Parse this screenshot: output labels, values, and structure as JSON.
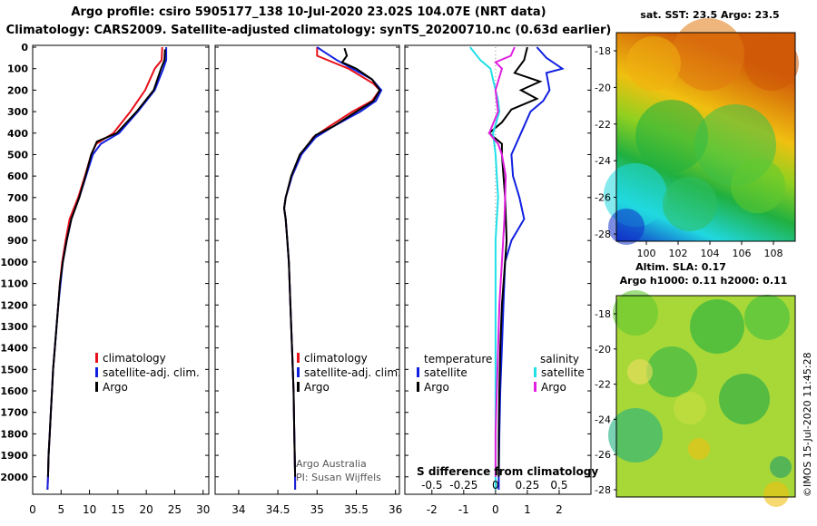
{
  "title": {
    "line1": "Argo profile: csiro 5905177_138 10-Jul-2020 23.02S 104.07E (NRT data)",
    "line2": "Climatology: CARS2009. Satellite-adjusted climatology: synTS_20200710.nc (0.63d earlier)"
  },
  "colors": {
    "climatology": "#e8101a",
    "satellite": "#1020e0",
    "argo": "#000000",
    "salinity_sat": "#20e0e8",
    "salinity_argo": "#e020e0"
  },
  "chart_data": [
    {
      "id": "temperature",
      "type": "line",
      "xlabel": "",
      "ylabel": "",
      "xlim": [
        0,
        31
      ],
      "ylim": [
        2070,
        0
      ],
      "xticks": [
        0,
        5,
        10,
        15,
        20,
        25,
        30
      ],
      "yticks": [
        0,
        100,
        200,
        300,
        400,
        500,
        600,
        700,
        800,
        900,
        1000,
        1100,
        1200,
        1300,
        1400,
        1500,
        1600,
        1700,
        1800,
        1900,
        2000
      ],
      "legend": [
        "climatology",
        "satellite-adj. clim.",
        "Argo"
      ],
      "series": [
        {
          "name": "climatology",
          "color": "#e8101a",
          "points": [
            [
              22.8,
              0
            ],
            [
              22.7,
              60
            ],
            [
              21.5,
              100
            ],
            [
              19.8,
              200
            ],
            [
              17.2,
              300
            ],
            [
              14.2,
              400
            ],
            [
              11.2,
              450
            ],
            [
              10.3,
              500
            ],
            [
              9.2,
              600
            ],
            [
              8.0,
              700
            ],
            [
              6.5,
              800
            ],
            [
              5.8,
              900
            ],
            [
              5.2,
              1000
            ],
            [
              4.8,
              1100
            ],
            [
              4.5,
              1200
            ],
            [
              4.2,
              1300
            ],
            [
              3.9,
              1400
            ],
            [
              3.6,
              1500
            ],
            [
              3.4,
              1600
            ],
            [
              3.2,
              1700
            ],
            [
              3.0,
              1800
            ],
            [
              2.8,
              1900
            ],
            [
              2.7,
              2000
            ],
            [
              2.6,
              2060
            ]
          ]
        },
        {
          "name": "satellite-adj. clim.",
          "color": "#1020e0",
          "points": [
            [
              23.5,
              0
            ],
            [
              23.5,
              60
            ],
            [
              23.0,
              100
            ],
            [
              21.5,
              200
            ],
            [
              18.5,
              300
            ],
            [
              15.2,
              400
            ],
            [
              12.0,
              450
            ],
            [
              10.6,
              500
            ],
            [
              9.4,
              600
            ],
            [
              8.2,
              700
            ],
            [
              6.8,
              800
            ],
            [
              6.0,
              900
            ],
            [
              5.3,
              1000
            ],
            [
              4.9,
              1100
            ],
            [
              4.5,
              1200
            ],
            [
              4.2,
              1300
            ],
            [
              3.9,
              1400
            ],
            [
              3.6,
              1500
            ],
            [
              3.4,
              1600
            ],
            [
              3.2,
              1700
            ],
            [
              3.0,
              1800
            ],
            [
              2.8,
              1900
            ],
            [
              2.7,
              2000
            ],
            [
              2.6,
              2060
            ]
          ]
        },
        {
          "name": "Argo",
          "color": "#000000",
          "points": [
            [
              23.3,
              10
            ],
            [
              23.2,
              60
            ],
            [
              22.6,
              100
            ],
            [
              21.3,
              200
            ],
            [
              18.3,
              300
            ],
            [
              14.8,
              400
            ],
            [
              11.3,
              440
            ],
            [
              10.3,
              500
            ],
            [
              9.3,
              600
            ],
            [
              8.2,
              700
            ],
            [
              6.8,
              800
            ],
            [
              6.0,
              900
            ],
            [
              5.3,
              1000
            ],
            [
              4.8,
              1100
            ],
            [
              4.5,
              1200
            ],
            [
              4.2,
              1300
            ],
            [
              3.9,
              1400
            ],
            [
              3.6,
              1500
            ],
            [
              3.4,
              1600
            ],
            [
              3.2,
              1700
            ],
            [
              3.0,
              1800
            ],
            [
              2.8,
              1900
            ],
            [
              2.7,
              2000
            ]
          ]
        }
      ]
    },
    {
      "id": "salinity",
      "type": "line",
      "xlabel": "",
      "ylabel": "",
      "xlim": [
        33.7,
        36.05
      ],
      "ylim": [
        2070,
        0
      ],
      "xticks": [
        "34",
        "34.5",
        "35",
        "35.5",
        "36"
      ],
      "legend": [
        "climatology",
        "satellite-adj. clim.",
        "Argo"
      ],
      "annotation": [
        "Argo Australia",
        "PI: Susan Wijffels"
      ],
      "series": [
        {
          "name": "climatology",
          "color": "#e8101a",
          "points": [
            [
              35.0,
              0
            ],
            [
              35.0,
              40
            ],
            [
              35.4,
              100
            ],
            [
              35.72,
              170
            ],
            [
              35.8,
              200
            ],
            [
              35.7,
              250
            ],
            [
              35.45,
              300
            ],
            [
              35.15,
              370
            ],
            [
              34.95,
              420
            ],
            [
              34.8,
              500
            ],
            [
              34.68,
              600
            ],
            [
              34.6,
              700
            ],
            [
              34.58,
              750
            ],
            [
              34.6,
              800
            ],
            [
              34.62,
              900
            ],
            [
              34.64,
              1000
            ],
            [
              34.66,
              1200
            ],
            [
              34.68,
              1400
            ],
            [
              34.7,
              1600
            ],
            [
              34.71,
              1800
            ],
            [
              34.72,
              2000
            ],
            [
              34.72,
              2060
            ]
          ]
        },
        {
          "name": "satellite-adj. clim.",
          "color": "#1020e0",
          "points": [
            [
              35.0,
              0
            ],
            [
              35.08,
              20
            ],
            [
              35.25,
              60
            ],
            [
              35.45,
              100
            ],
            [
              35.7,
              150
            ],
            [
              35.82,
              200
            ],
            [
              35.75,
              250
            ],
            [
              35.55,
              300
            ],
            [
              35.2,
              370
            ],
            [
              34.98,
              420
            ],
            [
              34.8,
              500
            ],
            [
              34.68,
              600
            ],
            [
              34.6,
              700
            ],
            [
              34.58,
              750
            ],
            [
              34.6,
              800
            ],
            [
              34.62,
              900
            ],
            [
              34.64,
              1000
            ],
            [
              34.66,
              1200
            ],
            [
              34.68,
              1400
            ],
            [
              34.7,
              1600
            ],
            [
              34.71,
              1800
            ],
            [
              34.72,
              2000
            ],
            [
              34.72,
              2060
            ]
          ]
        },
        {
          "name": "Argo",
          "color": "#000000",
          "points": [
            [
              35.35,
              5
            ],
            [
              35.38,
              40
            ],
            [
              35.32,
              70
            ],
            [
              35.5,
              100
            ],
            [
              35.7,
              150
            ],
            [
              35.8,
              200
            ],
            [
              35.72,
              250
            ],
            [
              35.5,
              300
            ],
            [
              35.2,
              370
            ],
            [
              34.98,
              410
            ],
            [
              34.78,
              500
            ],
            [
              34.67,
              600
            ],
            [
              34.6,
              700
            ],
            [
              34.58,
              750
            ],
            [
              34.6,
              800
            ],
            [
              34.62,
              900
            ],
            [
              34.64,
              1000
            ],
            [
              34.66,
              1200
            ],
            [
              34.68,
              1400
            ],
            [
              34.7,
              1600
            ],
            [
              34.71,
              1800
            ],
            [
              34.72,
              2000
            ]
          ]
        }
      ]
    },
    {
      "id": "difference",
      "type": "line",
      "xlabel": "S difference from climatology",
      "ylabel": "",
      "xlim_T": [
        -2.85,
        3.0
      ],
      "xticks_T": [
        "-2",
        "-1",
        "0",
        "1",
        "2"
      ],
      "xticks_T_values": [
        -2,
        -1,
        0,
        1,
        2
      ],
      "xticks_S": [
        "-0.5",
        "-0.25",
        "0",
        "0.25",
        "0.5"
      ],
      "xticks_S_values": [
        -0.5,
        -0.25,
        0,
        0.25,
        0.5
      ],
      "legend": {
        "temperature_header": "temperature",
        "salinity_header": "salinity",
        "temperature_items": [
          "satellite",
          "Argo"
        ],
        "salinity_items": [
          "satellite",
          "Argo"
        ]
      },
      "series": [
        {
          "name": "temperature satellite",
          "color": "#1020e0",
          "points": [
            [
              1.3,
              0
            ],
            [
              1.6,
              50
            ],
            [
              2.1,
              100
            ],
            [
              1.6,
              120
            ],
            [
              1.7,
              200
            ],
            [
              1.5,
              250
            ],
            [
              1.1,
              300
            ],
            [
              0.8,
              400
            ],
            [
              0.5,
              500
            ],
            [
              0.55,
              600
            ],
            [
              0.75,
              700
            ],
            [
              0.9,
              800
            ],
            [
              0.7,
              850
            ],
            [
              0.5,
              900
            ],
            [
              0.3,
              1000
            ],
            [
              0.25,
              1200
            ],
            [
              0.2,
              1400
            ],
            [
              0.15,
              1600
            ],
            [
              0.12,
              1800
            ],
            [
              0.1,
              2000
            ],
            [
              0.1,
              2060
            ]
          ]
        },
        {
          "name": "temperature Argo",
          "color": "#000000",
          "points": [
            [
              1.0,
              0
            ],
            [
              0.9,
              60
            ],
            [
              0.6,
              120
            ],
            [
              1.4,
              160
            ],
            [
              0.8,
              200
            ],
            [
              1.3,
              240
            ],
            [
              0.5,
              290
            ],
            [
              0.2,
              350
            ],
            [
              -0.2,
              400
            ],
            [
              0.2,
              450
            ],
            [
              0.2,
              500
            ],
            [
              0.3,
              700
            ],
            [
              0.35,
              900
            ],
            [
              0.3,
              1000
            ],
            [
              0.2,
              1200
            ],
            [
              0.15,
              1400
            ],
            [
              0.12,
              1600
            ],
            [
              0.1,
              1800
            ],
            [
              0.1,
              2000
            ]
          ]
        },
        {
          "name": "salinity satellite",
          "color": "#20e0e8",
          "points": [
            [
              -0.2,
              0
            ],
            [
              -0.12,
              60
            ],
            [
              -0.04,
              100
            ],
            [
              0.0,
              200
            ],
            [
              0.02,
              250
            ],
            [
              0.03,
              300
            ],
            [
              -0.02,
              400
            ],
            [
              0.0,
              500
            ],
            [
              0.02,
              700
            ],
            [
              0.0,
              900
            ],
            [
              0.0,
              1100
            ],
            [
              0.0,
              1400
            ],
            [
              0.0,
              1600
            ],
            [
              0.0,
              2000
            ],
            [
              0.0,
              2060
            ]
          ]
        },
        {
          "name": "salinity Argo",
          "color": "#e020e0",
          "points": [
            [
              0.15,
              0
            ],
            [
              0.12,
              40
            ],
            [
              0.0,
              70
            ],
            [
              0.05,
              100
            ],
            [
              0.0,
              200
            ],
            [
              0.02,
              300
            ],
            [
              -0.05,
              400
            ],
            [
              0.02,
              450
            ],
            [
              0.05,
              500
            ],
            [
              0.08,
              600
            ],
            [
              0.07,
              800
            ],
            [
              0.05,
              1000
            ],
            [
              0.03,
              1200
            ],
            [
              0.02,
              1400
            ],
            [
              0.01,
              1600
            ],
            [
              0.0,
              1800
            ],
            [
              0.0,
              2000
            ]
          ]
        }
      ]
    }
  ],
  "maps": {
    "sst": {
      "title": "sat. SST: 23.5 Argo: 23.5",
      "lon_ticks": [
        "100",
        "102",
        "104",
        "106",
        "108"
      ],
      "lat_ticks": [
        "-18",
        "-20",
        "-22",
        "-24",
        "-26",
        "-28"
      ]
    },
    "sla": {
      "title1": "Altim. SLA: 0.17",
      "title2": "Argo h1000: 0.11 h2000: 0.11",
      "lat_ticks": [
        "-18",
        "-20",
        "-22",
        "-24",
        "-26",
        "-28"
      ]
    }
  },
  "stamp": "©IMOS 15-Jul-2020 11:45:28"
}
